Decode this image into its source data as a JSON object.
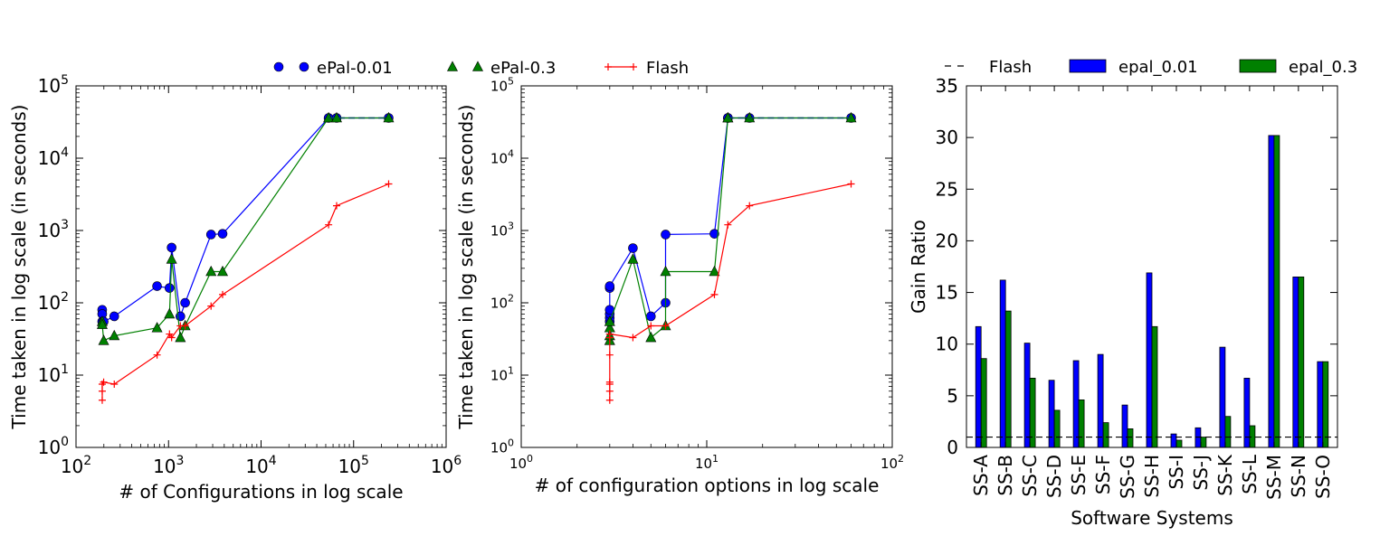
{
  "chart_data": [
    {
      "type": "line",
      "panel": "left",
      "xlabel": "# of Configurations in log scale",
      "ylabel": "Time taken in log scale (in seconds)",
      "xscale": "log",
      "yscale": "log",
      "xlim": [
        100,
        1000000
      ],
      "ylim": [
        1,
        100000
      ],
      "xticks": [
        {
          "base": "10",
          "exp": "2",
          "value": 100
        },
        {
          "base": "10",
          "exp": "3",
          "value": 1000
        },
        {
          "base": "10",
          "exp": "4",
          "value": 10000
        },
        {
          "base": "10",
          "exp": "5",
          "value": 100000
        },
        {
          "base": "10",
          "exp": "6",
          "value": 1000000
        }
      ],
      "yticks": [
        {
          "base": "10",
          "exp": "0",
          "value": 1
        },
        {
          "base": "10",
          "exp": "1",
          "value": 10
        },
        {
          "base": "10",
          "exp": "2",
          "value": 100
        },
        {
          "base": "10",
          "exp": "3",
          "value": 1000
        },
        {
          "base": "10",
          "exp": "4",
          "value": 10000
        },
        {
          "base": "10",
          "exp": "5",
          "value": 100000
        }
      ],
      "series": [
        {
          "name": "ePal-0.01",
          "color": "#0000ff",
          "marker": "circle",
          "x": [
            192,
            192,
            192,
            199,
            259,
            752,
            1024,
            1080,
            1343,
            1512,
            2880,
            3840,
            53662,
            65536,
            239260
          ],
          "y": [
            80,
            70,
            55,
            55,
            65,
            170,
            160,
            580,
            65,
            100,
            880,
            900,
            36000,
            36000,
            36000
          ]
        },
        {
          "name": "ePal-0.3",
          "color": "#008000",
          "marker": "triangle",
          "x": [
            192,
            192,
            199,
            259,
            752,
            1024,
            1080,
            1343,
            1512,
            2880,
            3840,
            53662,
            65536,
            239260
          ],
          "y": [
            55,
            50,
            30,
            35,
            45,
            70,
            400,
            33,
            48,
            270,
            270,
            36000,
            36000,
            36000
          ]
        },
        {
          "name": "Flash",
          "color": "#ff0000",
          "marker": "plus",
          "x": [
            192,
            192,
            192,
            199,
            259,
            752,
            1024,
            1080,
            1343,
            1512,
            2880,
            3840,
            53662,
            65536,
            239260
          ],
          "y": [
            4.5,
            6,
            7.5,
            8,
            7.5,
            19,
            37,
            33,
            48,
            48,
            90,
            130,
            1200,
            2200,
            4400
          ]
        }
      ],
      "dashed_segment": {
        "x": [
          53662,
          239260
        ],
        "y": [
          36000,
          36000
        ],
        "color": "#005050"
      }
    },
    {
      "type": "line",
      "panel": "middle",
      "xlabel": "# of configuration options in log scale",
      "ylabel": "Time taken in log scale (in seconds)",
      "xscale": "log",
      "yscale": "log",
      "xlim": [
        1,
        100
      ],
      "ylim": [
        1,
        100000
      ],
      "xticks": [
        {
          "base": "10",
          "exp": "0",
          "value": 1
        },
        {
          "base": "10",
          "exp": "1",
          "value": 10
        },
        {
          "base": "10",
          "exp": "2",
          "value": 100
        }
      ],
      "yticks": [
        {
          "base": "10",
          "exp": "0",
          "value": 1
        },
        {
          "base": "10",
          "exp": "1",
          "value": 10
        },
        {
          "base": "10",
          "exp": "2",
          "value": 100
        },
        {
          "base": "10",
          "exp": "3",
          "value": 1000
        },
        {
          "base": "10",
          "exp": "4",
          "value": 10000
        },
        {
          "base": "10",
          "exp": "5",
          "value": 100000
        }
      ],
      "series": [
        {
          "name": "ePal-0.01",
          "color": "#0000ff",
          "marker": "circle",
          "x": [
            3,
            3,
            3,
            3,
            3,
            3,
            4,
            5,
            6,
            6,
            11,
            13,
            13,
            17,
            60
          ],
          "y": [
            55,
            62,
            70,
            80,
            160,
            170,
            570,
            65,
            100,
            880,
            900,
            36000,
            36000,
            36000,
            36000
          ]
        },
        {
          "name": "ePal-0.3",
          "color": "#008000",
          "marker": "triangle",
          "x": [
            3,
            3,
            3,
            3,
            4,
            5,
            6,
            6,
            11,
            13,
            13,
            17,
            60
          ],
          "y": [
            30,
            35,
            45,
            55,
            400,
            33,
            48,
            270,
            270,
            36000,
            36000,
            36000,
            36000
          ]
        },
        {
          "name": "Flash",
          "color": "#ff0000",
          "marker": "plus",
          "x": [
            3,
            3,
            3,
            3,
            3,
            3,
            3,
            3,
            4,
            5,
            6,
            11,
            13,
            17,
            60
          ],
          "y": [
            4.5,
            6,
            7.5,
            8,
            19,
            33,
            37,
            37,
            33,
            48,
            48,
            130,
            1200,
            2200,
            4400
          ]
        }
      ],
      "dashed_segment": {
        "x": [
          13,
          60
        ],
        "y": [
          36000,
          36000
        ],
        "color": "#005050"
      }
    },
    {
      "type": "bar",
      "panel": "right",
      "xlabel": "Software Systems",
      "ylabel": "Gain Ratio",
      "ylim": [
        0,
        35
      ],
      "yticks": [
        "0",
        "5",
        "10",
        "15",
        "20",
        "25",
        "30",
        "35"
      ],
      "categories": [
        "SS-A",
        "SS-B",
        "SS-C",
        "SS-D",
        "SS-E",
        "SS-F",
        "SS-G",
        "SS-H",
        "SS-I",
        "SS-J",
        "SS-K",
        "SS-L",
        "SS-M",
        "SS-N",
        "SS-O"
      ],
      "series": [
        {
          "name": "epal_0.01",
          "color": "#0000ff",
          "values": [
            11.7,
            16.2,
            10.1,
            6.5,
            8.4,
            9.0,
            4.1,
            16.9,
            1.3,
            1.9,
            9.7,
            6.7,
            30.2,
            16.5,
            8.3
          ]
        },
        {
          "name": "epal_0.3",
          "color": "#008000",
          "values": [
            8.6,
            13.2,
            6.7,
            3.6,
            4.6,
            2.4,
            1.8,
            11.7,
            0.7,
            1.0,
            3.0,
            2.1,
            30.2,
            16.5,
            8.3
          ]
        }
      ],
      "reference_line": {
        "name": "Flash",
        "value": 1,
        "style": "dashed",
        "color": "#000000"
      }
    }
  ],
  "legend_top": {
    "items": [
      {
        "label": "ePal-0.01",
        "color": "#0000ff",
        "marker": "circle"
      },
      {
        "label": "ePal-0.3",
        "color": "#008000",
        "marker": "triangle"
      },
      {
        "label": "Flash",
        "color": "#ff0000",
        "marker": "plus"
      }
    ]
  },
  "legend_right": {
    "items": [
      {
        "label": "Flash",
        "kind": "dashed-line",
        "color": "#000000"
      },
      {
        "label": "epal_0.01",
        "kind": "patch",
        "color": "#0000ff"
      },
      {
        "label": "epal_0.3",
        "kind": "patch",
        "color": "#008000"
      }
    ]
  }
}
